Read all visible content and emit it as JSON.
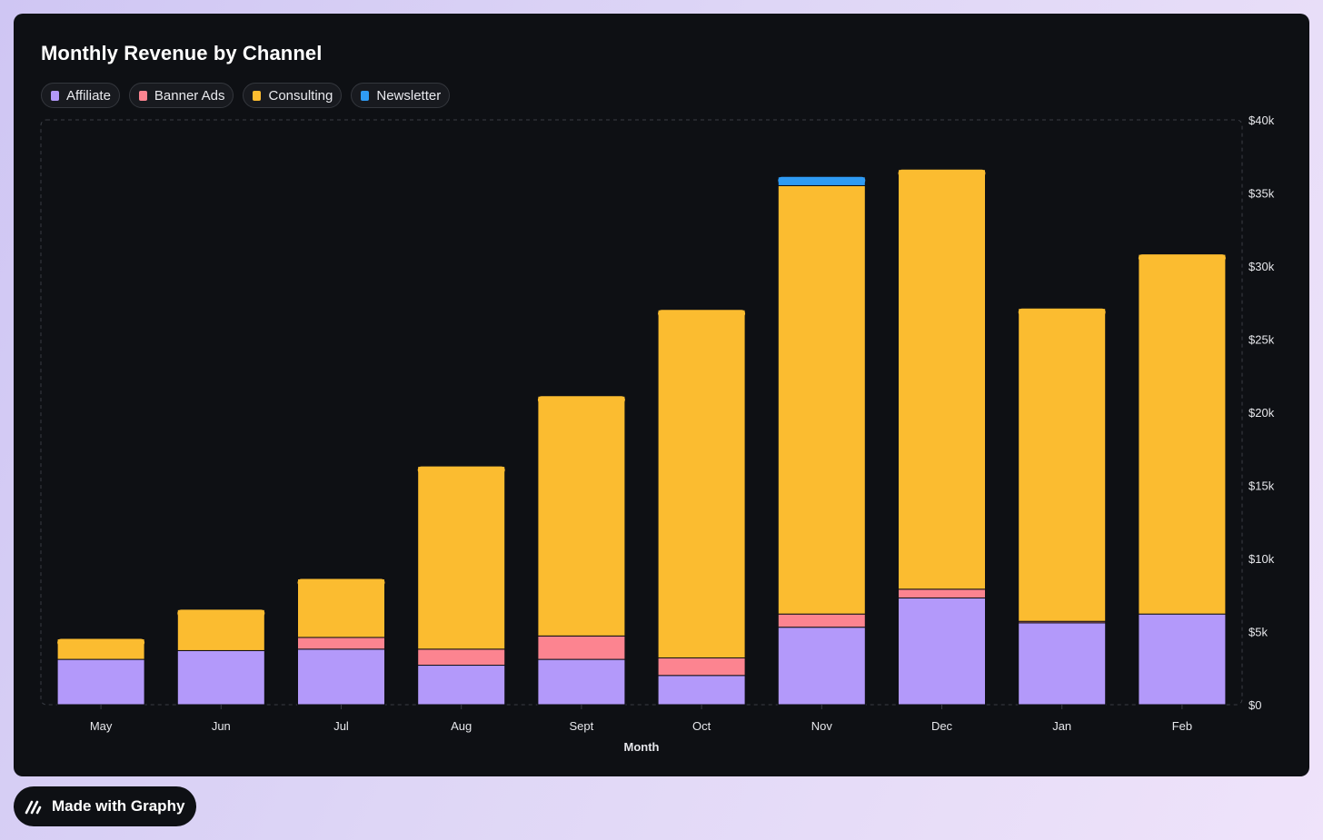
{
  "badge": {
    "label": "Made with Graphy",
    "icon": "graphy-logo-icon"
  },
  "chart_data": {
    "type": "bar",
    "stacked": true,
    "title": "Monthly Revenue by Channel",
    "xlabel": "Month",
    "ylabel": "",
    "ylim": [
      0,
      40000
    ],
    "yticks": [
      0,
      5000,
      10000,
      15000,
      20000,
      25000,
      30000,
      35000,
      40000
    ],
    "ytick_labels": [
      "$0",
      "$5k",
      "$10k",
      "$15k",
      "$20k",
      "$25k",
      "$30k",
      "$35k",
      "$40k"
    ],
    "y_axis_position": "right",
    "grid": false,
    "legend_position": "top-left",
    "categories": [
      "May",
      "Jun",
      "Jul",
      "Aug",
      "Sept",
      "Oct",
      "Nov",
      "Dec",
      "Jan",
      "Feb"
    ],
    "series": [
      {
        "name": "Affiliate",
        "color": "#b399fa",
        "values": [
          3100,
          3700,
          3800,
          2700,
          3100,
          2000,
          5300,
          7300,
          5600,
          6200
        ]
      },
      {
        "name": "Banner Ads",
        "color": "#fc8490",
        "values": [
          0,
          0,
          800,
          1100,
          1600,
          1200,
          900,
          600,
          100,
          0
        ]
      },
      {
        "name": "Consulting",
        "color": "#fbbc30",
        "values": [
          1400,
          2800,
          4000,
          12500,
          16400,
          23800,
          29300,
          28700,
          21400,
          24600
        ]
      },
      {
        "name": "Newsletter",
        "color": "#2f9bf4",
        "values": [
          0,
          0,
          0,
          0,
          0,
          0,
          600,
          0,
          0,
          0
        ]
      }
    ]
  }
}
